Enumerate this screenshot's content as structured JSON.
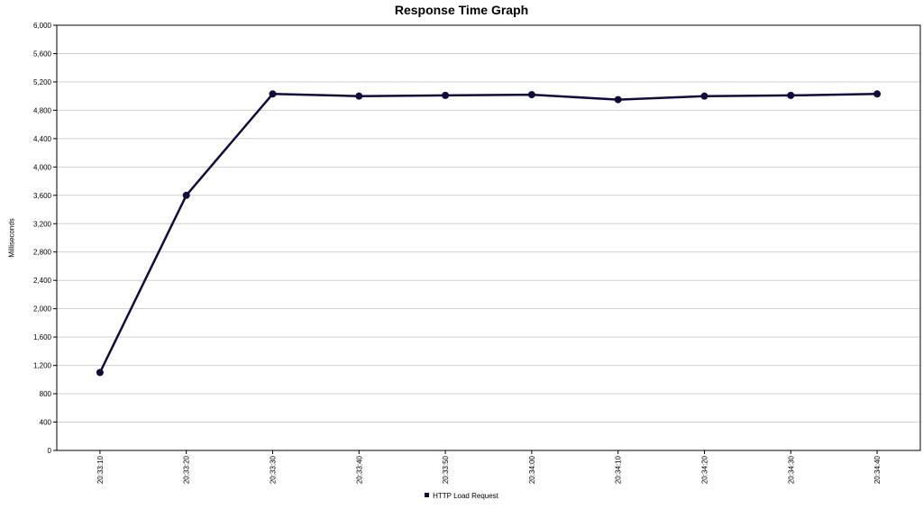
{
  "chart_data": {
    "type": "line",
    "title": "Response Time Graph",
    "xlabel": "",
    "ylabel": "Milliseconds",
    "ylim": [
      0,
      6000
    ],
    "y_ticks": [
      "0",
      "400",
      "800",
      "1,200",
      "1,600",
      "2,000",
      "2,400",
      "2,800",
      "3,200",
      "3,600",
      "4,000",
      "4,400",
      "4,800",
      "5,200",
      "5,600",
      "6,000"
    ],
    "y_tick_values": [
      0,
      400,
      800,
      1200,
      1600,
      2000,
      2400,
      2800,
      3200,
      3600,
      4000,
      4400,
      4800,
      5200,
      5600,
      6000
    ],
    "categories": [
      "20:33:10",
      "20:33:20",
      "20:33:30",
      "20:33:40",
      "20:33:50",
      "20:34:00",
      "20:34:10",
      "20:34:20",
      "20:34:30",
      "20:34:40"
    ],
    "grid": true,
    "legend_position": "bottom",
    "series": [
      {
        "name": "HTTP Load Request",
        "color": "#0f0b3a",
        "values": [
          1100,
          3600,
          5030,
          5000,
          5010,
          5020,
          4950,
          5000,
          5010,
          5030
        ]
      }
    ]
  }
}
